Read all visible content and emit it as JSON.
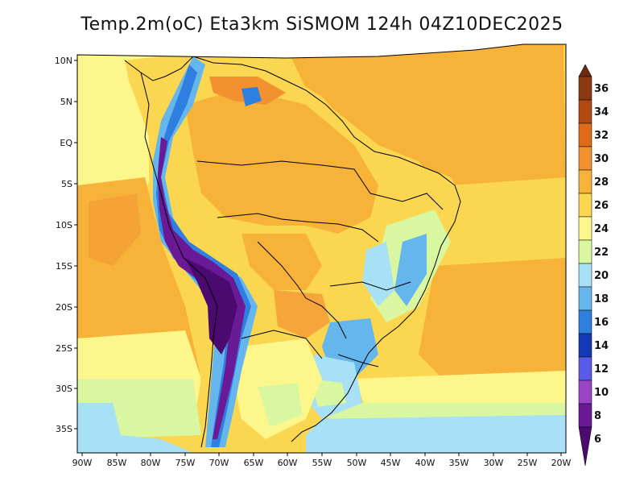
{
  "title": "Temp.2m(oC) Eta3km SiSMOM 124h 04Z10DEC2025",
  "colorbar": {
    "labels": [
      "36",
      "34",
      "32",
      "30",
      "28",
      "26",
      "24",
      "22",
      "20",
      "18",
      "16",
      "14",
      "12",
      "10",
      "8",
      "6"
    ],
    "colors": {
      "above_36": "#6b2a12",
      "c34_36": "#8b3a10",
      "c32_34": "#b04a10",
      "c30_32": "#e06a18",
      "c28_30": "#f39030",
      "c26_28": "#f7b23a",
      "c24_26": "#fbd650",
      "c22_24": "#fdf68a",
      "c20_22": "#d9f7a0",
      "c18_20": "#a8e0f6",
      "c16_18": "#66b6ee",
      "c14_16": "#2f7fe0",
      "c12_14": "#1338b8",
      "c10_12": "#5a5ae8",
      "c8_10": "#9a44c8",
      "c6_8": "#6a1a96",
      "below_6": "#4a0a70"
    }
  },
  "lat_labels": [
    "10N",
    "5N",
    "EQ",
    "5S",
    "10S",
    "15S",
    "20S",
    "25S",
    "30S",
    "35S"
  ],
  "lon_labels": [
    "90W",
    "85W",
    "80W",
    "75W",
    "70W",
    "65W",
    "60W",
    "55W",
    "50W",
    "45W",
    "40W",
    "35W",
    "30W",
    "25W",
    "20W"
  ]
}
